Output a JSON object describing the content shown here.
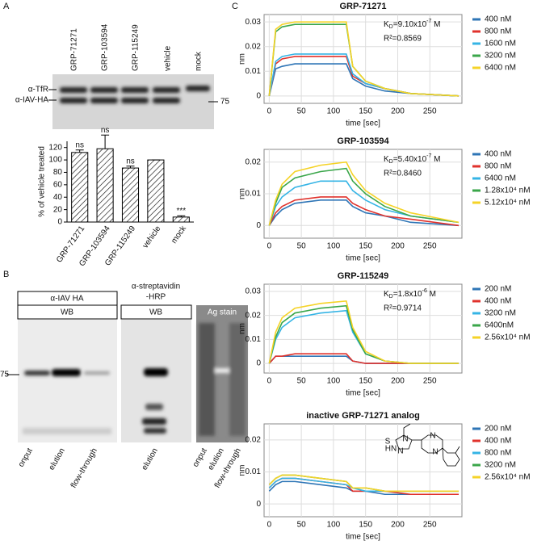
{
  "panel_labels": [
    "A",
    "B",
    "C"
  ],
  "blot_a": {
    "lanes": [
      "GRP-71271",
      "GRP-103594",
      "GRP-115249",
      "vehicle",
      "mock"
    ],
    "bands": [
      "α-TfR",
      "α-IAV-HA"
    ],
    "marker": "75"
  },
  "blot_b": {
    "marker": "75",
    "panels": [
      {
        "title": [
          "α-IAV HA"
        ],
        "method": "WB",
        "lanes": [
          "onput",
          "elution",
          "flow-through"
        ]
      },
      {
        "title": [
          "α-streptavidin",
          "-HRP"
        ],
        "method": "WB",
        "lanes": [
          "elution"
        ]
      },
      {
        "title": [
          "Ag stain"
        ],
        "lanes": [
          "onput",
          "elution",
          "flow-through"
        ]
      }
    ]
  },
  "chart_data": [
    {
      "type": "bar",
      "y_label": "% of vehicle treated",
      "categories": [
        "GRP-71271",
        "GRP-103594",
        "GRP-115249",
        "vehicle",
        "mock"
      ],
      "values": [
        112,
        118,
        87,
        100,
        8
      ],
      "errors": [
        4,
        22,
        3,
        0,
        2
      ],
      "value_annotations": [
        "ns",
        "ns",
        "ns",
        null,
        "***"
      ],
      "ylim": [
        0,
        130
      ],
      "yticks": [
        0,
        20,
        40,
        60,
        80,
        100,
        120
      ],
      "color": "#000000"
    },
    {
      "type": "line",
      "title": "GRP-71271",
      "x_label": "time [sec]",
      "y_label": "nm",
      "grid": true,
      "kd": {
        "symbol": "K",
        "sub": "D",
        "text": "=9.10x10",
        "exp": "-7",
        "unit": " M"
      },
      "r2": "R²=0.8569",
      "x": [
        0,
        10,
        20,
        40,
        80,
        120,
        130,
        150,
        180,
        220,
        295
      ],
      "xlim": [
        -8,
        300
      ],
      "xticks": [
        0,
        50,
        100,
        150,
        200,
        250
      ],
      "ylim": [
        -0.003,
        0.033
      ],
      "yticks": [
        0,
        0.01,
        0.02,
        0.03
      ],
      "series": [
        {
          "name": "400 nM",
          "color": "#2e75b6",
          "values": [
            0,
            0.011,
            0.012,
            0.013,
            0.013,
            0.013,
            0.007,
            0.004,
            0.002,
            0.001,
            0
          ]
        },
        {
          "name": "800 nM",
          "color": "#e0322c",
          "values": [
            0,
            0.013,
            0.015,
            0.016,
            0.016,
            0.016,
            0.008,
            0.005,
            0.003,
            0.001,
            0
          ]
        },
        {
          "name": "1600 nM",
          "color": "#35b4e5",
          "values": [
            0,
            0.014,
            0.016,
            0.017,
            0.017,
            0.017,
            0.009,
            0.005,
            0.003,
            0.001,
            0
          ]
        },
        {
          "name": "3200 nM",
          "color": "#3aa64a",
          "values": [
            0,
            0.026,
            0.028,
            0.029,
            0.029,
            0.029,
            0.012,
            0.006,
            0.003,
            0.001,
            0
          ]
        },
        {
          "name": "6400 nM",
          "color": "#f5d327",
          "values": [
            0,
            0.027,
            0.029,
            0.03,
            0.03,
            0.03,
            0.012,
            0.006,
            0.003,
            0.001,
            0
          ]
        }
      ]
    },
    {
      "type": "line",
      "title": "GRP-103594",
      "x_label": "time [sec]",
      "y_label": "nm",
      "grid": true,
      "kd": {
        "symbol": "K",
        "sub": "D",
        "text": "=5.40x10",
        "exp": "-7",
        "unit": " M"
      },
      "r2": "R²=0.8460",
      "x": [
        0,
        10,
        20,
        40,
        80,
        120,
        130,
        150,
        180,
        220,
        295
      ],
      "xlim": [
        -8,
        300
      ],
      "xticks": [
        0,
        50,
        100,
        150,
        200,
        250
      ],
      "ylim": [
        -0.004,
        0.024
      ],
      "yticks": [
        0,
        0.01,
        0.02
      ],
      "series": [
        {
          "name": "400 nM",
          "color": "#2e75b6",
          "values": [
            0,
            0.003,
            0.005,
            0.007,
            0.008,
            0.008,
            0.006,
            0.004,
            0.003,
            0.001,
            0
          ]
        },
        {
          "name": "800 nM",
          "color": "#e0322c",
          "values": [
            0,
            0.004,
            0.006,
            0.008,
            0.009,
            0.009,
            0.007,
            0.005,
            0.003,
            0.002,
            0
          ]
        },
        {
          "name": "6400 nM",
          "color": "#35b4e5",
          "values": [
            0,
            0.006,
            0.009,
            0.012,
            0.014,
            0.014,
            0.011,
            0.008,
            0.005,
            0.003,
            0.001
          ]
        },
        {
          "name": "1.28x10⁴ nM",
          "color": "#3aa64a",
          "values": [
            0,
            0.007,
            0.012,
            0.015,
            0.017,
            0.018,
            0.014,
            0.01,
            0.006,
            0.003,
            0.001
          ]
        },
        {
          "name": "5.12x10⁴ nM",
          "color": "#f5d327",
          "values": [
            0,
            0.008,
            0.013,
            0.017,
            0.019,
            0.02,
            0.016,
            0.011,
            0.007,
            0.004,
            0.001
          ]
        }
      ]
    },
    {
      "type": "line",
      "title": "GRP-115249",
      "x_label": "time [sec]",
      "y_label": "nm",
      "grid": true,
      "kd": {
        "symbol": "K",
        "sub": "D",
        "text": "=1.8x10",
        "exp": "-6",
        "unit": " M"
      },
      "r2": "R²=0.9714",
      "x": [
        0,
        10,
        20,
        40,
        80,
        120,
        130,
        150,
        180,
        220,
        295
      ],
      "xlim": [
        -8,
        300
      ],
      "xticks": [
        0,
        50,
        100,
        150,
        200,
        250
      ],
      "ylim": [
        -0.004,
        0.033
      ],
      "yticks": [
        0,
        0.01,
        0.02,
        0.03
      ],
      "series": [
        {
          "name": "200 nM",
          "color": "#2e75b6",
          "values": [
            0,
            0.003,
            0.003,
            0.003,
            0.003,
            0.003,
            0.001,
            0,
            0,
            0,
            0
          ]
        },
        {
          "name": "400 nM",
          "color": "#e0322c",
          "values": [
            0,
            0.003,
            0.003,
            0.004,
            0.004,
            0.004,
            0.001,
            0,
            0,
            0,
            0
          ]
        },
        {
          "name": "3200 nM",
          "color": "#35b4e5",
          "values": [
            0,
            0.01,
            0.015,
            0.019,
            0.021,
            0.022,
            0.013,
            0.004,
            0.001,
            0,
            0
          ]
        },
        {
          "name": "6400nM",
          "color": "#3aa64a",
          "values": [
            0,
            0.011,
            0.017,
            0.021,
            0.023,
            0.024,
            0.014,
            0.004,
            0.001,
            0,
            0
          ]
        },
        {
          "name": "2.56x10⁴ nM",
          "color": "#f5d327",
          "values": [
            0,
            0.013,
            0.019,
            0.023,
            0.025,
            0.026,
            0.015,
            0.005,
            0.001,
            0,
            0
          ]
        }
      ]
    },
    {
      "type": "line",
      "title": "inactive GRP-71271 analog",
      "x_label": "time [sec]",
      "y_label": "nm",
      "grid": true,
      "structure_labels": [
        "S",
        "N",
        "N",
        "HN",
        "N",
        "N"
      ],
      "x": [
        0,
        10,
        20,
        40,
        80,
        120,
        130,
        150,
        180,
        220,
        295
      ],
      "xlim": [
        -8,
        300
      ],
      "xticks": [
        0,
        50,
        100,
        150,
        200,
        250
      ],
      "ylim": [
        -0.004,
        0.025
      ],
      "yticks": [
        0,
        0.01,
        0.02
      ],
      "series": [
        {
          "name": "200 nM",
          "color": "#2e75b6",
          "values": [
            0.004,
            0.006,
            0.007,
            0.007,
            0.006,
            0.005,
            0.004,
            0.004,
            0.003,
            0.003,
            0.003
          ]
        },
        {
          "name": "400 nM",
          "color": "#e0322c",
          "values": [
            0.005,
            0.007,
            0.008,
            0.008,
            0.007,
            0.006,
            0.004,
            0.004,
            0.004,
            0.003,
            0.003
          ]
        },
        {
          "name": "800 nM",
          "color": "#35b4e5",
          "values": [
            0.005,
            0.007,
            0.008,
            0.008,
            0.007,
            0.006,
            0.005,
            0.004,
            0.004,
            0.004,
            0.004
          ]
        },
        {
          "name": "3200 nM",
          "color": "#3aa64a",
          "values": [
            0.006,
            0.008,
            0.009,
            0.009,
            0.008,
            0.007,
            0.005,
            0.005,
            0.004,
            0.004,
            0.004
          ]
        },
        {
          "name": "2.56x10⁴ nM",
          "color": "#f5d327",
          "values": [
            0.006,
            0.008,
            0.009,
            0.009,
            0.008,
            0.007,
            0.005,
            0.005,
            0.004,
            0.004,
            0.004
          ]
        }
      ]
    }
  ]
}
